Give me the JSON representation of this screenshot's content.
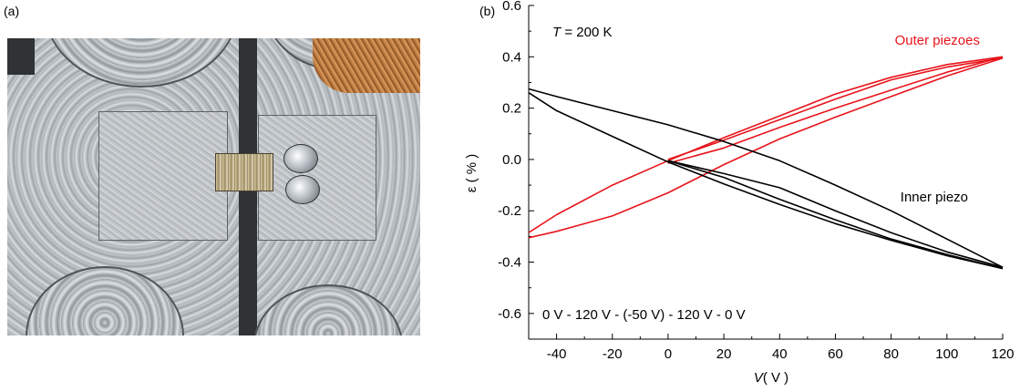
{
  "panels": {
    "a_label": "(a)",
    "b_label": "(b)"
  },
  "photo": {
    "description_icon": "photo-of-sample-mount"
  },
  "chart_data": {
    "type": "line",
    "xlabel_italic": "V",
    "xlabel_unit": "( V )",
    "ylabel_symbol": "ε",
    "ylabel_unit": "( % )",
    "xlim": [
      -50,
      120
    ],
    "ylim": [
      -0.7,
      0.6
    ],
    "xticks": [
      -40,
      -20,
      0,
      20,
      40,
      60,
      80,
      100,
      120
    ],
    "xtick_labels": [
      "-40",
      "-20",
      "0",
      "20",
      "40",
      "60",
      "80",
      "100",
      "120"
    ],
    "yticks": [
      -0.6,
      -0.4,
      -0.2,
      0.0,
      0.2,
      0.4,
      0.6
    ],
    "ytick_labels": [
      "-0.6",
      "-0.4",
      "-0.2",
      "0.0",
      "0.2",
      "0.4",
      "0.6"
    ],
    "grid": false,
    "annotations": {
      "temperature_symbol": "T",
      "temperature_value": " = 200 K",
      "sweep": "0 V - 120 V - (-50 V) - 120 V - 0 V"
    },
    "series": [
      {
        "name": "Outer piezoes",
        "color": "#e8141b",
        "branches": [
          {
            "x": [
              0,
              20,
              40,
              60,
              80,
              100,
              120
            ],
            "y": [
              0.0,
              0.075,
              0.155,
              0.235,
              0.31,
              0.36,
              0.395
            ]
          },
          {
            "x": [
              120,
              100,
              80,
              60,
              40,
              20,
              0,
              -20,
              -40,
              -50
            ],
            "y": [
              0.395,
              0.325,
              0.245,
              0.165,
              0.08,
              -0.02,
              -0.13,
              -0.22,
              -0.28,
              -0.305
            ]
          },
          {
            "x": [
              -50,
              -40,
              -20,
              0,
              20,
              40,
              60,
              80,
              100,
              120
            ],
            "y": [
              -0.285,
              -0.215,
              -0.1,
              -0.005,
              0.085,
              0.17,
              0.255,
              0.32,
              0.37,
              0.4
            ]
          },
          {
            "x": [
              120,
              100,
              80,
              60,
              40,
              20,
              0
            ],
            "y": [
              0.4,
              0.34,
              0.27,
              0.2,
              0.125,
              0.045,
              -0.015
            ]
          }
        ]
      },
      {
        "name": "Inner piezo",
        "color": "#000000",
        "branches": [
          {
            "x": [
              0,
              20,
              40,
              60,
              80,
              100,
              120
            ],
            "y": [
              -0.005,
              -0.055,
              -0.11,
              -0.2,
              -0.285,
              -0.36,
              -0.42
            ]
          },
          {
            "x": [
              120,
              100,
              80,
              60,
              40,
              20,
              0,
              -20,
              -40,
              -50
            ],
            "y": [
              -0.42,
              -0.31,
              -0.2,
              -0.1,
              -0.005,
              0.07,
              0.135,
              0.19,
              0.245,
              0.275
            ]
          },
          {
            "x": [
              -50,
              -40,
              -20,
              0,
              20,
              40,
              60,
              80,
              100,
              120
            ],
            "y": [
              0.26,
              0.19,
              0.09,
              -0.01,
              -0.095,
              -0.175,
              -0.25,
              -0.315,
              -0.375,
              -0.425
            ]
          },
          {
            "x": [
              120,
              100,
              80,
              60,
              40,
              20,
              0
            ],
            "y": [
              -0.425,
              -0.37,
              -0.31,
              -0.235,
              -0.155,
              -0.07,
              -0.005
            ]
          }
        ]
      }
    ]
  }
}
